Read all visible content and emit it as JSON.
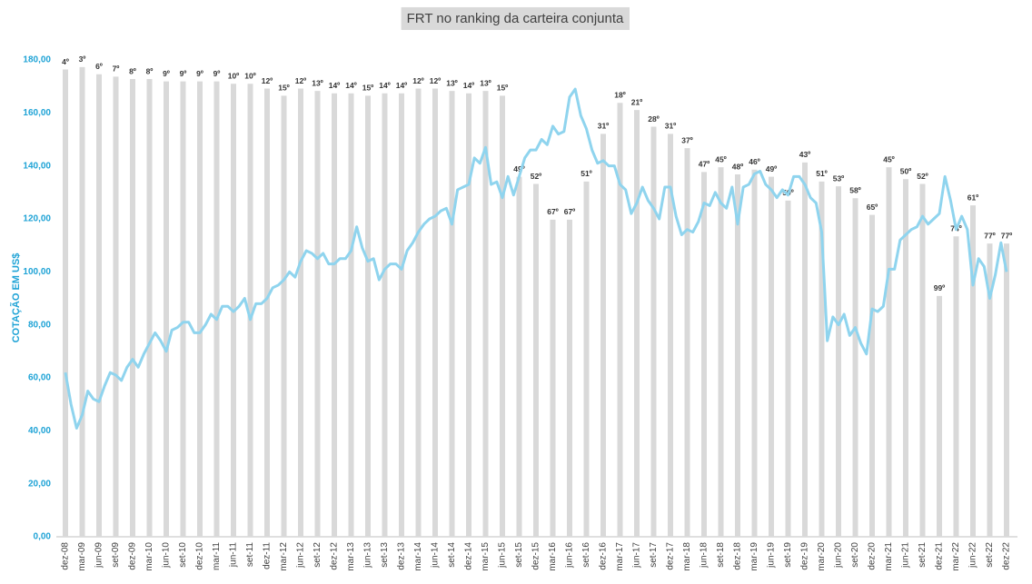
{
  "chart_data": {
    "type": "bar-line",
    "title": "FRT no ranking da carteira conjunta",
    "y_label": "COTAÇÃO EM US$",
    "ylim": [
      0,
      180
    ],
    "yticks": [
      {
        "value": 0,
        "label": "0,00"
      },
      {
        "value": 20,
        "label": "20,00"
      },
      {
        "value": 40,
        "label": "40,00"
      },
      {
        "value": 60,
        "label": "60,00"
      },
      {
        "value": 80,
        "label": "80,00"
      },
      {
        "value": 100,
        "label": "100,00"
      },
      {
        "value": 120,
        "label": "120,00"
      },
      {
        "value": 140,
        "label": "140,00"
      },
      {
        "value": 160,
        "label": "160,00"
      },
      {
        "value": 180,
        "label": "180,00"
      }
    ],
    "y2lim": [
      200,
      0
    ],
    "categories": [
      "dez-08",
      null,
      null,
      "mar-09",
      null,
      null,
      "jun-09",
      null,
      null,
      "set-09",
      null,
      null,
      "dez-09",
      null,
      null,
      "mar-10",
      null,
      null,
      "jun-10",
      null,
      null,
      "set-10",
      null,
      null,
      "dez-10",
      null,
      null,
      "mar-11",
      null,
      null,
      "jun-11",
      null,
      null,
      "set-11",
      null,
      null,
      "dez-11",
      null,
      null,
      "mar-12",
      null,
      null,
      "jun-12",
      null,
      null,
      "set-12",
      null,
      null,
      "dez-12",
      null,
      null,
      "mar-13",
      null,
      null,
      "jun-13",
      null,
      null,
      "set-13",
      null,
      null,
      "dez-13",
      null,
      null,
      "mar-14",
      null,
      null,
      "jun-14",
      null,
      null,
      "set-14",
      null,
      null,
      "dez-14",
      null,
      null,
      "mar-15",
      null,
      null,
      "jun-15",
      null,
      null,
      "set-15",
      null,
      null,
      "dez-15",
      null,
      null,
      "mar-16",
      null,
      null,
      "jun-16",
      null,
      null,
      "set-16",
      null,
      null,
      "dez-16",
      null,
      null,
      "mar-17",
      null,
      null,
      "jun-17",
      null,
      null,
      "set-17",
      null,
      null,
      "dez-17",
      null,
      null,
      "mar-18",
      null,
      null,
      "jun-18",
      null,
      null,
      "set-18",
      null,
      null,
      "dez-18",
      null,
      null,
      "mar-19",
      null,
      null,
      "jun-19",
      null,
      null,
      "set-19",
      null,
      null,
      "dez-19",
      null,
      null,
      "mar-20",
      null,
      null,
      "jun-20",
      null,
      null,
      "set-20",
      null,
      null,
      "dez-20",
      null,
      null,
      "mar-21",
      null,
      null,
      "jun-21",
      null,
      null,
      "set-21",
      null,
      null,
      "dez-21",
      null,
      null,
      "mar-22",
      null,
      null,
      "jun-22",
      null,
      null,
      "set-22",
      null,
      null,
      "dez-22"
    ],
    "series": [
      {
        "type": "bar",
        "axis": "y2",
        "color": "#d9d9d9",
        "values": [
          4,
          null,
          null,
          3,
          null,
          null,
          6,
          null,
          null,
          7,
          null,
          null,
          8,
          null,
          null,
          8,
          null,
          null,
          9,
          null,
          null,
          9,
          null,
          null,
          9,
          null,
          null,
          9,
          null,
          null,
          10,
          null,
          null,
          10,
          null,
          null,
          12,
          null,
          null,
          15,
          null,
          null,
          12,
          null,
          null,
          13,
          null,
          null,
          14,
          null,
          null,
          14,
          null,
          null,
          15,
          null,
          null,
          14,
          null,
          null,
          14,
          null,
          null,
          12,
          null,
          null,
          12,
          null,
          null,
          13,
          null,
          null,
          14,
          null,
          null,
          13,
          null,
          null,
          15,
          null,
          null,
          49,
          null,
          null,
          52,
          null,
          null,
          67,
          null,
          null,
          67,
          null,
          null,
          51,
          null,
          null,
          31,
          null,
          null,
          18,
          null,
          null,
          21,
          null,
          null,
          28,
          null,
          null,
          31,
          null,
          null,
          37,
          null,
          null,
          47,
          null,
          null,
          45,
          null,
          null,
          48,
          null,
          null,
          46,
          null,
          null,
          49,
          null,
          null,
          59,
          null,
          null,
          43,
          null,
          null,
          51,
          null,
          null,
          53,
          null,
          null,
          58,
          null,
          null,
          65,
          null,
          null,
          45,
          null,
          null,
          50,
          null,
          null,
          52,
          null,
          null,
          99,
          null,
          null,
          74,
          null,
          null,
          61,
          null,
          null,
          77,
          null,
          null,
          77
        ],
        "value_labels": [
          "4º",
          null,
          null,
          "3º",
          null,
          null,
          "6º",
          null,
          null,
          "7º",
          null,
          null,
          "8º",
          null,
          null,
          "8º",
          null,
          null,
          "9º",
          null,
          null,
          "9º",
          null,
          null,
          "9º",
          null,
          null,
          "9º",
          null,
          null,
          "10º",
          null,
          null,
          "10º",
          null,
          null,
          "12º",
          null,
          null,
          "15º",
          null,
          null,
          "12º",
          null,
          null,
          "13º",
          null,
          null,
          "14º",
          null,
          null,
          "14º",
          null,
          null,
          "15º",
          null,
          null,
          "14º",
          null,
          null,
          "14º",
          null,
          null,
          "12º",
          null,
          null,
          "12º",
          null,
          null,
          "13º",
          null,
          null,
          "14º",
          null,
          null,
          "13º",
          null,
          null,
          "15º",
          null,
          null,
          "49º",
          null,
          null,
          "52º",
          null,
          null,
          "67º",
          null,
          null,
          "67º",
          null,
          null,
          "51º",
          null,
          null,
          "31º",
          null,
          null,
          "18º",
          null,
          null,
          "21º",
          null,
          null,
          "28º",
          null,
          null,
          "31º",
          null,
          null,
          "37º",
          null,
          null,
          "47º",
          null,
          null,
          "45º",
          null,
          null,
          "48º",
          null,
          null,
          "46º",
          null,
          null,
          "49º",
          null,
          null,
          "59º",
          null,
          null,
          "43º",
          null,
          null,
          "51º",
          null,
          null,
          "53º",
          null,
          null,
          "58º",
          null,
          null,
          "65º",
          null,
          null,
          "45º",
          null,
          null,
          "50º",
          null,
          null,
          "52º",
          null,
          null,
          "99º",
          null,
          null,
          "74º",
          null,
          null,
          "61º",
          null,
          null,
          "77º",
          null,
          null,
          "77º"
        ]
      },
      {
        "type": "line",
        "color": "#8fd4ee",
        "values": [
          62,
          50,
          41,
          46,
          55,
          52,
          51,
          57,
          62,
          61,
          59,
          64,
          67,
          64,
          69,
          73,
          77,
          74,
          70,
          78,
          79,
          81,
          81,
          77,
          77,
          80,
          84,
          82,
          87,
          87,
          85,
          87,
          90,
          82,
          88,
          88,
          90,
          94,
          95,
          97,
          100,
          98,
          104,
          108,
          107,
          105,
          107,
          103,
          103,
          105,
          105,
          108,
          117,
          109,
          104,
          105,
          97,
          101,
          103,
          103,
          101,
          108,
          111,
          115,
          118,
          120,
          121,
          123,
          124,
          118,
          131,
          132,
          133,
          143,
          141,
          147,
          133,
          134,
          128,
          136,
          129,
          136,
          143,
          146,
          146,
          150,
          148,
          155,
          152,
          153,
          166,
          169,
          159,
          154,
          146,
          141,
          142,
          140,
          140,
          133,
          131,
          122,
          126,
          132,
          127,
          124,
          120,
          132,
          132,
          121,
          114,
          116,
          115,
          119,
          126,
          125,
          130,
          126,
          124,
          132,
          118,
          132,
          133,
          137,
          138,
          133,
          131,
          128,
          131,
          129,
          136,
          136,
          133,
          128,
          126,
          115,
          74,
          83,
          80,
          84,
          76,
          79,
          73,
          69,
          86,
          85,
          87,
          101,
          101,
          112,
          114,
          116,
          117,
          121,
          118,
          120,
          122,
          136,
          127,
          116,
          121,
          116,
          95,
          105,
          102,
          90,
          99,
          111,
          100
        ]
      }
    ]
  }
}
